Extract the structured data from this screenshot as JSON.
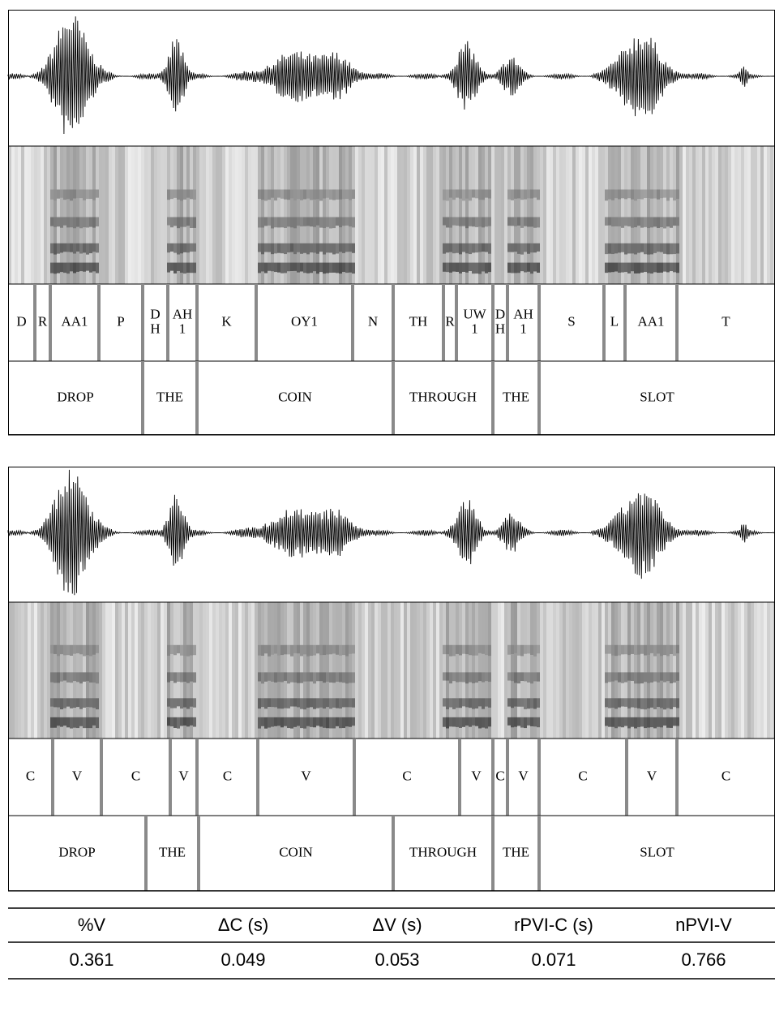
{
  "panels": [
    {
      "phones": [
        "D",
        "R",
        "AA1",
        "P",
        "DH",
        "AH1",
        "K",
        "OY1",
        "N",
        "TH",
        "R",
        "UW1",
        "DH",
        "AH1",
        "S",
        "L",
        "AA1",
        "T"
      ],
      "words": [
        "DROP",
        "THE",
        "COIN",
        "THROUGH",
        "THE",
        "SLOT"
      ]
    },
    {
      "segments": [
        "C",
        "V",
        "C",
        "V",
        "C",
        "V",
        "C",
        "V",
        "C",
        "V",
        "C",
        "V",
        "C"
      ],
      "words": [
        "DROP",
        "THE",
        "COIN",
        "THROUGH",
        "THE",
        "SLOT"
      ]
    }
  ],
  "table": {
    "headers": [
      "%V",
      "ΔC (s)",
      "ΔV (s)",
      "rPVI-C (s)",
      "nPVI-V"
    ],
    "rows": [
      [
        0.361,
        0.049,
        0.053,
        0.071,
        0.766
      ]
    ]
  }
}
